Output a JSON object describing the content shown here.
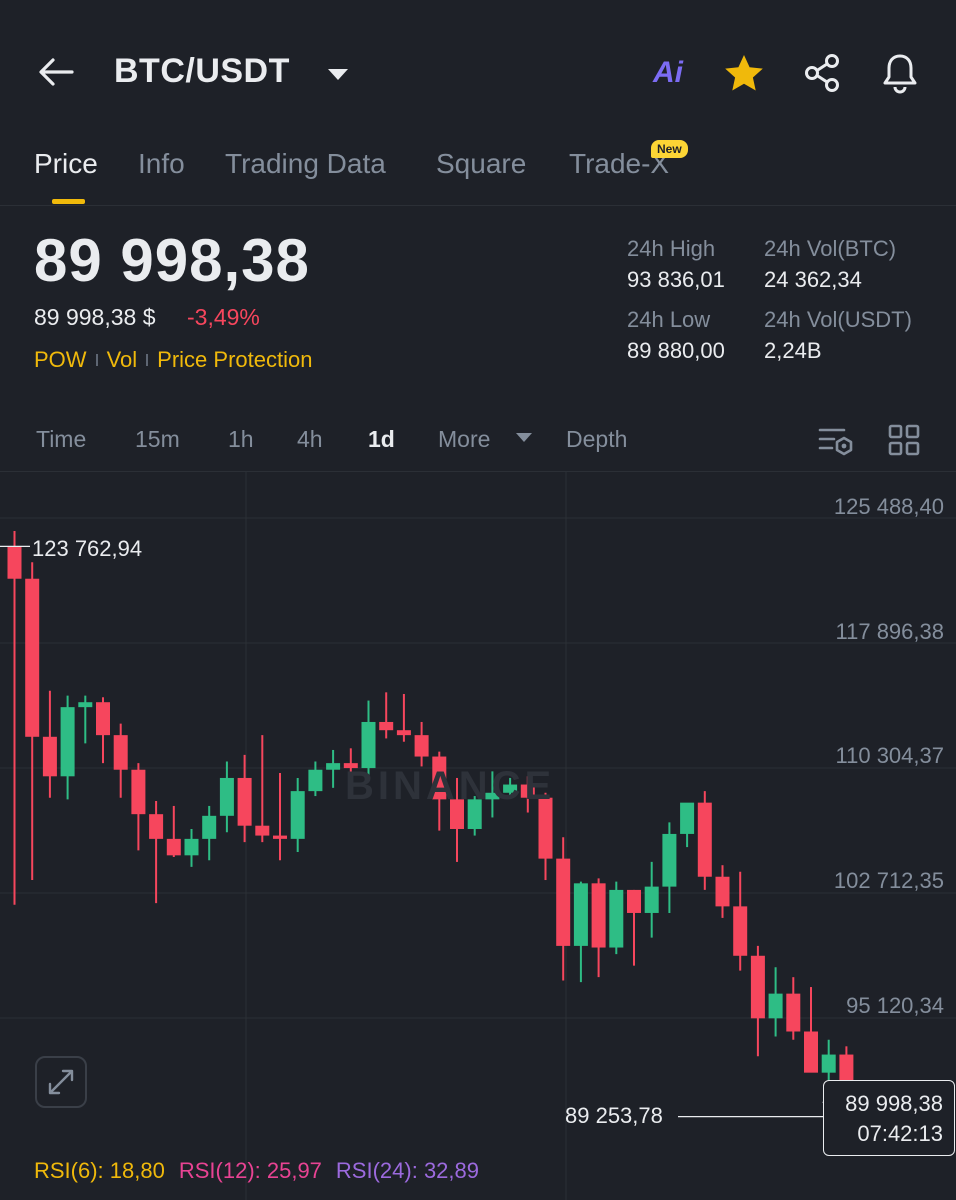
{
  "header": {
    "pair": "BTC/USDT",
    "icons": [
      "back-arrow-icon",
      "chevron-down-icon",
      "ai-icon",
      "star-icon",
      "share-icon",
      "bell-icon"
    ],
    "ai_label": "Ai"
  },
  "tabs": [
    {
      "label": "Price",
      "active": true
    },
    {
      "label": "Info"
    },
    {
      "label": "Trading Data"
    },
    {
      "label": "Square"
    },
    {
      "label": "Trade-X",
      "badge": "New"
    }
  ],
  "price": {
    "last": "89 998,38",
    "usd": "89 998,38 $",
    "change": "-3,49%",
    "tags": [
      "POW",
      "Vol",
      "Price Protection"
    ]
  },
  "stats": {
    "high_label": "24h High",
    "high": "93 836,01",
    "low_label": "24h Low",
    "low": "89 880,00",
    "vol_btc_label": "24h Vol(BTC)",
    "vol_btc": "24 362,34",
    "vol_usdt_label": "24h Vol(USDT)",
    "vol_usdt": "2,24B"
  },
  "intervals": {
    "items": [
      "Time",
      "15m",
      "1h",
      "4h",
      "1d",
      "More",
      "Depth"
    ],
    "active": "1d"
  },
  "chart_data": {
    "type": "candlestick",
    "watermark": "BINANCE",
    "y_ticks": [
      "125 488,40",
      "117 896,38",
      "110 304,37",
      "102 712,35",
      "95 120,34"
    ],
    "y_tick_values": [
      125488.4,
      117896.38,
      110304.37,
      102712.35,
      95120.34
    ],
    "high_marker": "123 762,94",
    "low_marker": "89 253,78",
    "last_price": "89 998,38",
    "countdown": "07:42:13",
    "colors": {
      "up": "#2ebd85",
      "down": "#f6465d",
      "grid": "#2b2f36"
    },
    "candles": [
      {
        "o": 123760,
        "h": 124700,
        "l": 102000,
        "c": 121800
      },
      {
        "o": 121800,
        "h": 122800,
        "l": 103500,
        "c": 112200
      },
      {
        "o": 112200,
        "h": 115000,
        "l": 108500,
        "c": 109800
      },
      {
        "o": 109800,
        "h": 114700,
        "l": 108400,
        "c": 114000
      },
      {
        "o": 114000,
        "h": 114700,
        "l": 111800,
        "c": 114300
      },
      {
        "o": 114300,
        "h": 114600,
        "l": 110600,
        "c": 112300
      },
      {
        "o": 112300,
        "h": 113000,
        "l": 108500,
        "c": 110200
      },
      {
        "o": 110200,
        "h": 110600,
        "l": 105300,
        "c": 107500
      },
      {
        "o": 107500,
        "h": 108300,
        "l": 102100,
        "c": 106000
      },
      {
        "o": 106000,
        "h": 108000,
        "l": 104900,
        "c": 105000
      },
      {
        "o": 105000,
        "h": 106600,
        "l": 104300,
        "c": 106000
      },
      {
        "o": 106000,
        "h": 108000,
        "l": 104700,
        "c": 107400
      },
      {
        "o": 107400,
        "h": 110700,
        "l": 106400,
        "c": 109700
      },
      {
        "o": 109700,
        "h": 111100,
        "l": 105800,
        "c": 106800
      },
      {
        "o": 106800,
        "h": 112300,
        "l": 105800,
        "c": 106200
      },
      {
        "o": 106200,
        "h": 110000,
        "l": 104700,
        "c": 106000
      },
      {
        "o": 106000,
        "h": 109700,
        "l": 105200,
        "c": 108900
      },
      {
        "o": 108900,
        "h": 110700,
        "l": 108600,
        "c": 110200
      },
      {
        "o": 110200,
        "h": 111400,
        "l": 109100,
        "c": 110600
      },
      {
        "o": 110600,
        "h": 111500,
        "l": 109600,
        "c": 110300
      },
      {
        "o": 110300,
        "h": 114400,
        "l": 109800,
        "c": 113100
      },
      {
        "o": 113100,
        "h": 114900,
        "l": 112100,
        "c": 112600
      },
      {
        "o": 112600,
        "h": 114800,
        "l": 111900,
        "c": 112300
      },
      {
        "o": 112300,
        "h": 113100,
        "l": 110400,
        "c": 111000
      },
      {
        "o": 111000,
        "h": 111300,
        "l": 106500,
        "c": 108400
      },
      {
        "o": 108400,
        "h": 109700,
        "l": 104600,
        "c": 106600
      },
      {
        "o": 106600,
        "h": 108600,
        "l": 106200,
        "c": 108400
      },
      {
        "o": 108400,
        "h": 110100,
        "l": 107300,
        "c": 108800
      },
      {
        "o": 108800,
        "h": 109700,
        "l": 108500,
        "c": 109300
      },
      {
        "o": 109300,
        "h": 109800,
        "l": 107600,
        "c": 108500
      },
      {
        "o": 108500,
        "h": 108800,
        "l": 103500,
        "c": 104800
      },
      {
        "o": 104800,
        "h": 106100,
        "l": 97400,
        "c": 99500
      },
      {
        "o": 99500,
        "h": 103400,
        "l": 97300,
        "c": 103300
      },
      {
        "o": 103300,
        "h": 103600,
        "l": 97600,
        "c": 99400
      },
      {
        "o": 99400,
        "h": 103400,
        "l": 99000,
        "c": 102900
      },
      {
        "o": 102900,
        "h": 102900,
        "l": 98300,
        "c": 101500
      },
      {
        "o": 101500,
        "h": 104600,
        "l": 100000,
        "c": 103100
      },
      {
        "o": 103100,
        "h": 107000,
        "l": 101500,
        "c": 106300
      },
      {
        "o": 106300,
        "h": 107900,
        "l": 105500,
        "c": 108200
      },
      {
        "o": 108200,
        "h": 108900,
        "l": 102900,
        "c": 103700
      },
      {
        "o": 103700,
        "h": 104400,
        "l": 101200,
        "c": 101900
      },
      {
        "o": 101900,
        "h": 104000,
        "l": 98000,
        "c": 98900
      },
      {
        "o": 98900,
        "h": 99500,
        "l": 92800,
        "c": 95100
      },
      {
        "o": 95100,
        "h": 98200,
        "l": 94000,
        "c": 96600
      },
      {
        "o": 96600,
        "h": 97600,
        "l": 93800,
        "c": 94300
      },
      {
        "o": 94300,
        "h": 97000,
        "l": 92100,
        "c": 91800
      },
      {
        "o": 91800,
        "h": 93800,
        "l": 89300,
        "c": 92900
      },
      {
        "o": 92900,
        "h": 93400,
        "l": 89880,
        "c": 90000
      }
    ]
  },
  "rsi": {
    "rsi6": "RSI(6): 18,80",
    "rsi12": "RSI(12): 25,97",
    "rsi24": "RSI(24): 32,89"
  }
}
